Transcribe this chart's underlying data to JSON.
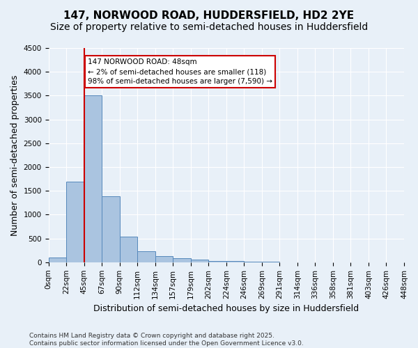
{
  "title_line1": "147, NORWOOD ROAD, HUDDERSFIELD, HD2 2YE",
  "title_line2": "Size of property relative to semi-detached houses in Huddersfield",
  "xlabel": "Distribution of semi-detached houses by size in Huddersfield",
  "ylabel": "Number of semi-detached properties",
  "footnote": "Contains HM Land Registry data © Crown copyright and database right 2025.\nContains public sector information licensed under the Open Government Licence v3.0.",
  "bin_labels": [
    "0sqm",
    "22sqm",
    "45sqm",
    "67sqm",
    "90sqm",
    "112sqm",
    "134sqm",
    "157sqm",
    "179sqm",
    "202sqm",
    "224sqm",
    "246sqm",
    "269sqm",
    "291sqm",
    "314sqm",
    "336sqm",
    "358sqm",
    "381sqm",
    "403sqm",
    "426sqm",
    "448sqm"
  ],
  "bar_values": [
    100,
    1700,
    3500,
    1380,
    540,
    230,
    130,
    80,
    60,
    30,
    20,
    10,
    5,
    0,
    0,
    0,
    0,
    0,
    0,
    0
  ],
  "bar_color": "#aac4e0",
  "bar_edge_color": "#5588bb",
  "vline_x": 2,
  "annotation_line1": "147 NORWOOD ROAD: 48sqm",
  "annotation_line2": "← 2% of semi-detached houses are smaller (118)",
  "annotation_line3": "98% of semi-detached houses are larger (7,590) →",
  "annotation_box_color": "#ffffff",
  "annotation_box_edge": "#cc0000",
  "vline_color": "#cc0000",
  "ylim": [
    0,
    4500
  ],
  "yticks": [
    0,
    500,
    1000,
    1500,
    2000,
    2500,
    3000,
    3500,
    4000,
    4500
  ],
  "background_color": "#e8f0f8",
  "grid_color": "#ffffff",
  "title_fontsize": 11,
  "subtitle_fontsize": 10,
  "axis_label_fontsize": 9,
  "tick_fontsize": 7.5,
  "footnote_fontsize": 6.5
}
